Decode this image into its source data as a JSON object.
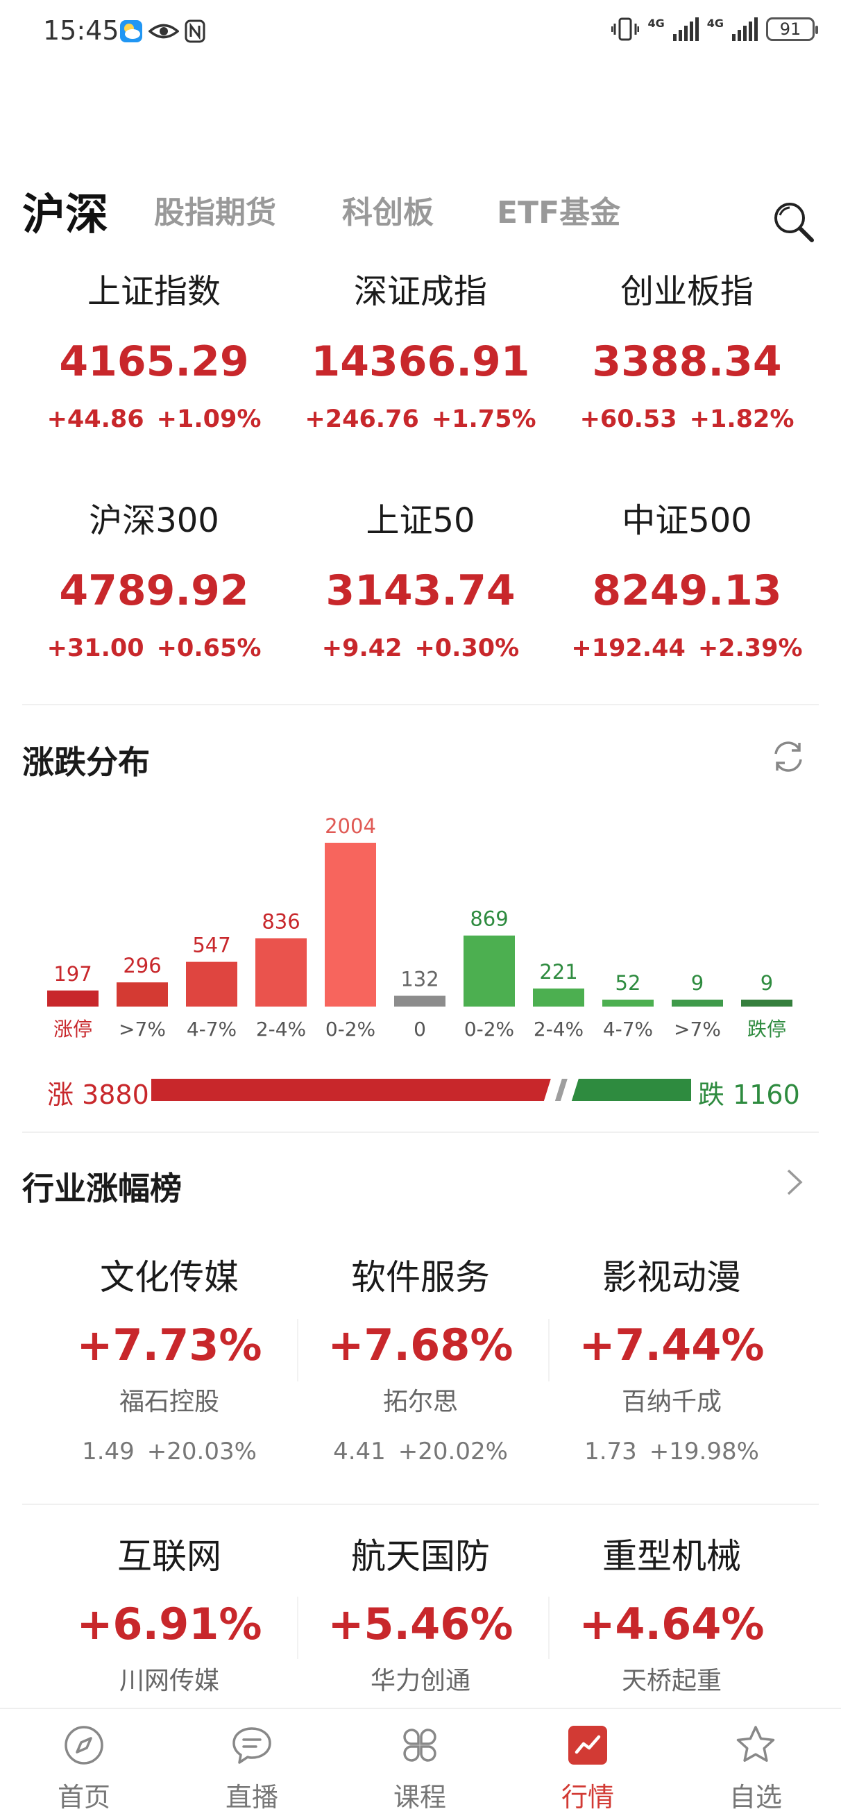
{
  "status_bar": {
    "time": "15:45",
    "battery": "91"
  },
  "tabs": [
    {
      "label": "沪深",
      "active": true
    },
    {
      "label": "股指期货",
      "active": false
    },
    {
      "label": "科创板",
      "active": false
    },
    {
      "label": "ETF基金",
      "active": false
    }
  ],
  "indices": [
    {
      "name": "上证指数",
      "value": "4165.29",
      "change": "+44.86",
      "pct": "+1.09%"
    },
    {
      "name": "深证成指",
      "value": "14366.91",
      "change": "+246.76",
      "pct": "+1.75%"
    },
    {
      "name": "创业板指",
      "value": "3388.34",
      "change": "+60.53",
      "pct": "+1.82%"
    },
    {
      "name": "沪深300",
      "value": "4789.92",
      "change": "+31.00",
      "pct": "+0.65%"
    },
    {
      "name": "上证50",
      "value": "3143.74",
      "change": "+9.42",
      "pct": "+0.30%"
    },
    {
      "name": "中证500",
      "value": "8249.13",
      "change": "+192.44",
      "pct": "+2.39%"
    }
  ],
  "distribution": {
    "title": "涨跌分布",
    "up_label": "涨 3880",
    "down_label": "跌 1160",
    "up_count": 3880,
    "down_count": 1160
  },
  "chart_data": {
    "type": "bar",
    "categories": [
      "涨停",
      ">7%",
      "4-7%",
      "2-4%",
      "0-2%",
      "0",
      "0-2%",
      "2-4%",
      "4-7%",
      ">7%",
      "跌停"
    ],
    "values": [
      197,
      296,
      547,
      836,
      2004,
      132,
      869,
      221,
      52,
      9,
      9
    ],
    "value_labels": [
      "197",
      "296",
      "547",
      "836",
      "2004",
      "132",
      "869",
      "221",
      "52",
      "9",
      "9"
    ],
    "bar_colors": [
      "#c8272b",
      "#d43a33",
      "#df4540",
      "#ea534d",
      "#f7655d",
      "#8c8c8c",
      "#4caf50",
      "#4caf50",
      "#4caf50",
      "#3f9a4a",
      "#357f3d"
    ],
    "label_colors": [
      "#c8272b",
      "#555555",
      "#555555",
      "#555555",
      "#555555",
      "#555555",
      "#555555",
      "#555555",
      "#555555",
      "#555555",
      "#2e8b3f"
    ],
    "value_colors": [
      "#c8272b",
      "#c8272b",
      "#c8272b",
      "#c8272b",
      "#e05a55",
      "#666666",
      "#2e8b3f",
      "#2e8b3f",
      "#2e8b3f",
      "#2e8b3f",
      "#2e8b3f"
    ]
  },
  "industry": {
    "title": "行业涨幅榜",
    "items": [
      {
        "name": "文化传媒",
        "pct": "+7.73%",
        "stock": "福石控股",
        "price": "1.49",
        "stock_pct": "+20.03%"
      },
      {
        "name": "软件服务",
        "pct": "+7.68%",
        "stock": "拓尔思",
        "price": "4.41",
        "stock_pct": "+20.02%"
      },
      {
        "name": "影视动漫",
        "pct": "+7.44%",
        "stock": "百纳千成",
        "price": "1.73",
        "stock_pct": "+19.98%"
      },
      {
        "name": "互联网",
        "pct": "+6.91%",
        "stock": "川网传媒",
        "price": "",
        "stock_pct": ""
      },
      {
        "name": "航天国防",
        "pct": "+5.46%",
        "stock": "华力创通",
        "price": "",
        "stock_pct": ""
      },
      {
        "name": "重型机械",
        "pct": "+4.64%",
        "stock": "天桥起重",
        "price": "",
        "stock_pct": ""
      }
    ]
  },
  "nav": [
    {
      "label": "首页",
      "icon": "compass-icon",
      "active": false
    },
    {
      "label": "直播",
      "icon": "chat-bubble-icon",
      "active": false
    },
    {
      "label": "课程",
      "icon": "clover-grid-icon",
      "active": false
    },
    {
      "label": "行情",
      "icon": "trend-chart-icon",
      "active": true
    },
    {
      "label": "自选",
      "icon": "star-icon",
      "active": false
    }
  ],
  "colors": {
    "up": "#c8272b",
    "down": "#2e8b3f",
    "accent": "#d23a34"
  }
}
